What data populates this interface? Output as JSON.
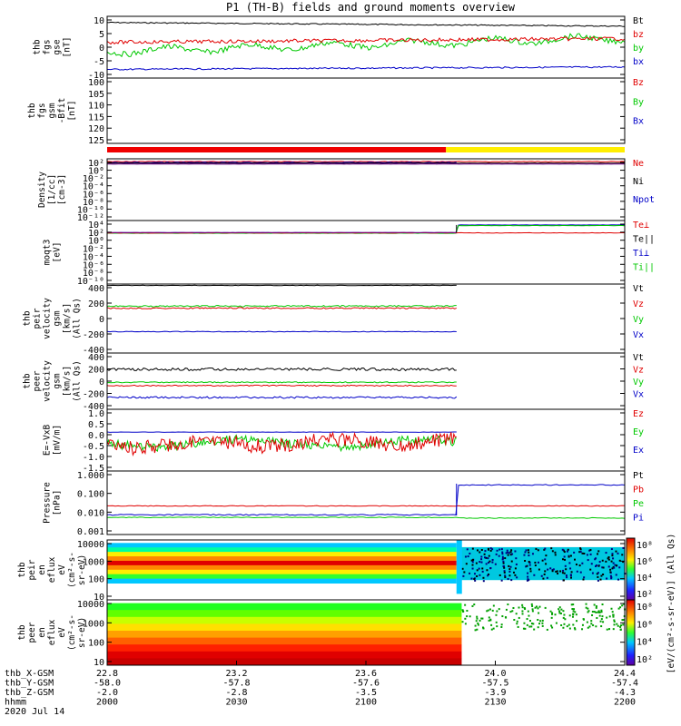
{
  "chart_data": {
    "type": "line",
    "title": "P1 (TH-B) fields and ground moments overview",
    "date_label": "2020 Jul 14",
    "x_axis": {
      "rows": [
        {
          "label": "thb_X-GSM",
          "values": [
            "22.8",
            "23.2",
            "23.6",
            "24.0",
            "24.4"
          ]
        },
        {
          "label": "thb_Y-GSM",
          "values": [
            "-58.0",
            "-57.8",
            "-57.6",
            "-57.5",
            "-57.4"
          ]
        },
        {
          "label": "thb_Z-GSM",
          "values": [
            "-2.0",
            "-2.8",
            "-3.5",
            "-3.9",
            "-4.3"
          ]
        },
        {
          "label": "hhmm",
          "values": [
            "2000",
            "2030",
            "2100",
            "2130",
            "2200"
          ]
        }
      ]
    },
    "panels": [
      {
        "id": "fgs",
        "ylabel": [
          "thb",
          "fgs",
          "gse",
          "[nT]"
        ],
        "yticks": [
          "10",
          "5",
          "0",
          "-5",
          "-10"
        ],
        "legend": [
          {
            "label": "Bt",
            "color": "#000000"
          },
          {
            "label": "bz",
            "color": "#e00000"
          },
          {
            "label": "by",
            "color": "#00c800"
          },
          {
            "label": "bx",
            "color": "#0000c8"
          }
        ]
      },
      {
        "id": "fgs-gsm",
        "ylabel": [
          "thb",
          "fgs",
          "gsm",
          "-Bfit",
          "[nT]"
        ],
        "yticks": [
          "100",
          "105",
          "110",
          "115",
          "120",
          "125"
        ],
        "legend": [
          {
            "label": "Bz",
            "color": "#e00000"
          },
          {
            "label": "By",
            "color": "#00c800"
          },
          {
            "label": "Bx",
            "color": "#0000c8"
          }
        ]
      },
      {
        "id": "density",
        "ylabel": [
          "Density",
          "[1/cc]",
          "[cm-3]"
        ],
        "yticks": [
          "10²",
          "10⁰",
          "10⁻²",
          "10⁻⁴",
          "10⁻⁶",
          "10⁻⁸",
          "10⁻¹⁰",
          "10⁻¹²"
        ],
        "legend": [
          {
            "label": "Ne",
            "color": "#e00000"
          },
          {
            "label": "Ni",
            "color": "#000000"
          },
          {
            "label": "Npot",
            "color": "#0000c8"
          }
        ]
      },
      {
        "id": "temp",
        "ylabel": [
          "moqt3",
          "[eV]"
        ],
        "yticks": [
          "10⁴",
          "10²",
          "10⁰",
          "10⁻²",
          "10⁻⁴",
          "10⁻⁶",
          "10⁻⁸",
          "10⁻¹⁰"
        ],
        "legend": [
          {
            "label": "Te⊥",
            "color": "#e00000"
          },
          {
            "label": "Te||",
            "color": "#000000"
          },
          {
            "label": "Ti⊥",
            "color": "#0000c8"
          },
          {
            "label": "Ti||",
            "color": "#00c800"
          }
        ]
      },
      {
        "id": "peir-vel",
        "ylabel": [
          "thb",
          "peir",
          "velocity",
          "gsm",
          "[km/s]",
          "(All Qs)"
        ],
        "yticks": [
          "400",
          "200",
          "0",
          "-200",
          "-400"
        ],
        "legend": [
          {
            "label": "Vt",
            "color": "#000000"
          },
          {
            "label": "Vz",
            "color": "#e00000"
          },
          {
            "label": "Vy",
            "color": "#00c800"
          },
          {
            "label": "Vx",
            "color": "#0000c8"
          }
        ]
      },
      {
        "id": "peer-vel",
        "ylabel": [
          "thb",
          "peer",
          "velocity",
          "gsm",
          "[km/s]",
          "(All Qs)"
        ],
        "yticks": [
          "400",
          "200",
          "0",
          "-200",
          "-400"
        ],
        "legend": [
          {
            "label": "Vt",
            "color": "#000000"
          },
          {
            "label": "Vz",
            "color": "#e00000"
          },
          {
            "label": "Vy",
            "color": "#00c800"
          },
          {
            "label": "Vx",
            "color": "#0000c8"
          }
        ]
      },
      {
        "id": "efield",
        "ylabel": [
          "E=-VxB",
          "[mV/m]"
        ],
        "yticks": [
          "1.0",
          "0.5",
          "0.0",
          "-0.5",
          "-1.0",
          "-1.5"
        ],
        "legend": [
          {
            "label": "Ez",
            "color": "#e00000"
          },
          {
            "label": "Ey",
            "color": "#00c800"
          },
          {
            "label": "Ex",
            "color": "#0000c8"
          }
        ]
      },
      {
        "id": "pressure",
        "ylabel": [
          "Pressure",
          "[nPa]"
        ],
        "yticks": [
          "1.000",
          "0.100",
          "0.010",
          "0.001"
        ],
        "legend": [
          {
            "label": "Pt",
            "color": "#000000"
          },
          {
            "label": "Pb",
            "color": "#e00000"
          },
          {
            "label": "Pe",
            "color": "#00c800"
          },
          {
            "label": "Pi",
            "color": "#0000c8"
          }
        ]
      },
      {
        "id": "peir-spec",
        "ylabel": [
          "thb",
          "peir",
          "en",
          "eflux",
          "eV",
          "(cm²-s-",
          "sr-eV)"
        ],
        "yticks": [
          "10000",
          "1000",
          "100",
          "10"
        ]
      },
      {
        "id": "peer-spec",
        "ylabel": [
          "thb",
          "peer",
          "en",
          "eflux",
          "eV",
          "(cm²-s-",
          "sr-eV)"
        ],
        "yticks": [
          "10000",
          "1000",
          "100",
          "10"
        ]
      }
    ],
    "colorbar": {
      "label": "[eV/(cm²-s-sr-eV)] (All Qs)",
      "ticks": [
        "10⁸",
        "10⁶",
        "10⁴",
        "10²"
      ]
    }
  }
}
